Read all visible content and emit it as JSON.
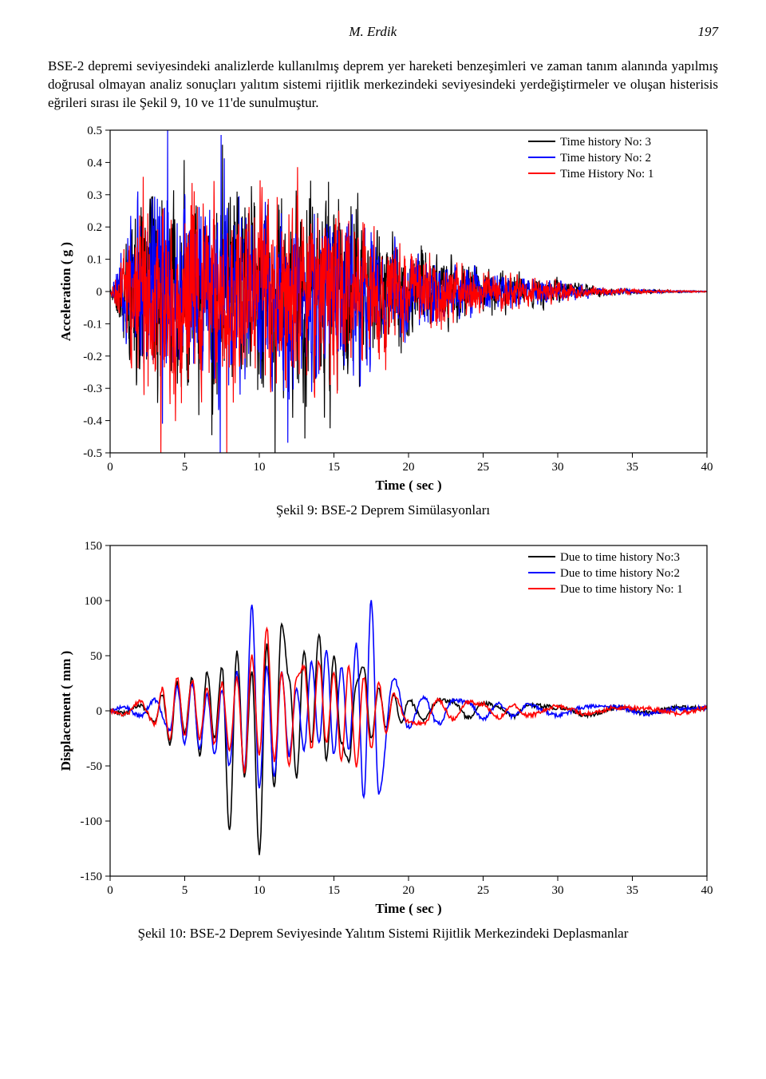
{
  "header": {
    "author": "M. Erdik",
    "page": "197"
  },
  "paragraph": "BSE-2 depremi seviyesindeki analizlerde kullanılmış deprem yer hareketi benzeşimleri ve zaman tanım alanında yapılmış doğrusal olmayan analiz sonuçları yalıtım sistemi rijitlik merkezindeki seviyesindeki yerdeğiştirmeler ve oluşan histerisis  eğrileri sırası ile Şekil 9, 10 ve 11'de sunulmuştur.",
  "chart1": {
    "type": "line",
    "caption": "Şekil 9: BSE-2 Deprem Simülasyonları",
    "xlabel": "Time ( sec )",
    "ylabel": "Acceleration ( g )",
    "xlim": [
      0,
      40
    ],
    "ylim": [
      -0.5,
      0.5
    ],
    "xtick_step": 5,
    "ytick_step": 0.1,
    "background_color": "#ffffff",
    "axis_color": "#000000",
    "grid": false,
    "title_fontsize": 17,
    "label_fontsize": 17,
    "tick_fontsize": 15,
    "line_width": 1.2,
    "legend": {
      "position": "top-right",
      "items": [
        {
          "label": "Time history No: 3",
          "color": "#000000"
        },
        {
          "label": "Time history No: 2",
          "color": "#0000ff"
        },
        {
          "label": "Time History No: 1",
          "color": "#ff0000"
        }
      ]
    },
    "series": [
      {
        "name": "th3",
        "color": "#000000",
        "noise_seed": 301,
        "peak": 0.45,
        "envelope": "seismic"
      },
      {
        "name": "th2",
        "color": "#0000ff",
        "noise_seed": 202,
        "peak": 0.4,
        "envelope": "seismic"
      },
      {
        "name": "th1",
        "color": "#ff0000",
        "noise_seed": 103,
        "peak": 0.42,
        "envelope": "seismic"
      }
    ],
    "duration_peak_window": [
      2,
      14
    ],
    "decay_after": 15
  },
  "chart2": {
    "type": "line",
    "caption": "Şekil 10: BSE-2 Deprem Seviyesinde Yalıtım Sistemi Rijitlik Merkezindeki Deplasmanlar",
    "xlabel": "Time ( sec )",
    "ylabel": "Displacement ( mm )",
    "xlim": [
      0,
      40
    ],
    "ylim": [
      -150,
      150
    ],
    "xtick_step": 5,
    "ytick_step": 50,
    "background_color": "#ffffff",
    "axis_color": "#000000",
    "grid": false,
    "title_fontsize": 17,
    "label_fontsize": 17,
    "tick_fontsize": 15,
    "line_width": 1.6,
    "legend": {
      "position": "top-right",
      "items": [
        {
          "label": "Due to time history No:3",
          "color": "#000000"
        },
        {
          "label": "Due to time history No:2",
          "color": "#0000ff"
        },
        {
          "label": "Due to time history No: 1",
          "color": "#ff0000"
        }
      ]
    },
    "series_data": {
      "th3": {
        "color": "#000000",
        "t": [
          0,
          1,
          2,
          3,
          3.5,
          4,
          4.5,
          5,
          5.5,
          6,
          6.5,
          7,
          7.5,
          8,
          8.5,
          9,
          9.5,
          10,
          10.5,
          11,
          11.5,
          12,
          12.5,
          13,
          13.5,
          14,
          14.5,
          15,
          15.5,
          16,
          16.5,
          17,
          17.5,
          18,
          18.5,
          19,
          19.5,
          20,
          21,
          22,
          23,
          24,
          25,
          26,
          27,
          28,
          30,
          32,
          34,
          36,
          38,
          40
        ],
        "y": [
          0,
          -2,
          5,
          -10,
          15,
          -30,
          25,
          -20,
          30,
          -40,
          35,
          -25,
          40,
          -110,
          55,
          -60,
          35,
          -130,
          60,
          -70,
          80,
          30,
          -60,
          55,
          -30,
          70,
          -45,
          50,
          -30,
          -45,
          25,
          40,
          -25,
          20,
          -15,
          15,
          -12,
          10,
          -8,
          10,
          8,
          -6,
          7,
          4,
          -5,
          5,
          3,
          -4,
          3,
          -2,
          3,
          2
        ]
      },
      "th2": {
        "color": "#0000ff",
        "t": [
          0,
          1,
          2,
          3,
          4,
          4.5,
          5,
          5.5,
          6,
          6.5,
          7,
          7.5,
          8,
          8.5,
          9,
          9.5,
          10,
          10.5,
          11,
          11.5,
          12,
          12.5,
          13,
          13.5,
          14,
          14.5,
          15,
          15.5,
          16,
          16.5,
          17,
          17.5,
          18,
          19,
          20,
          21,
          22,
          23,
          24,
          25,
          26,
          27,
          28,
          30,
          32,
          34,
          36,
          38,
          40
        ],
        "y": [
          0,
          3,
          -5,
          10,
          -18,
          22,
          -30,
          25,
          -35,
          15,
          -40,
          20,
          -50,
          35,
          -55,
          95,
          -70,
          40,
          -60,
          35,
          -40,
          20,
          -35,
          45,
          -30,
          55,
          -40,
          40,
          -35,
          60,
          -80,
          100,
          -75,
          30,
          -15,
          12,
          -12,
          10,
          8,
          -8,
          6,
          -5,
          5,
          -4,
          4,
          3,
          -3,
          2,
          3
        ]
      },
      "th1": {
        "color": "#ff0000",
        "t": [
          0,
          1,
          2,
          3,
          3.5,
          4,
          4.5,
          5,
          5.5,
          6,
          6.5,
          7,
          7.5,
          8,
          8.5,
          9,
          9.5,
          10,
          10.5,
          11,
          11.5,
          12,
          12.5,
          13,
          13.5,
          14,
          14.5,
          15,
          15.5,
          16,
          16.5,
          17,
          17.5,
          18,
          18.5,
          19,
          20,
          21,
          22,
          23,
          24,
          25,
          26,
          27,
          28,
          30,
          32,
          34,
          36,
          38,
          40
        ],
        "y": [
          0,
          -3,
          8,
          -12,
          20,
          -28,
          30,
          -22,
          28,
          -25,
          20,
          -30,
          25,
          -35,
          30,
          -55,
          50,
          -40,
          75,
          -45,
          35,
          -50,
          30,
          40,
          -35,
          45,
          -30,
          35,
          -45,
          40,
          -50,
          30,
          -35,
          25,
          -20,
          15,
          -10,
          -12,
          10,
          -8,
          8,
          6,
          -6,
          5,
          -4,
          4,
          -3,
          3,
          2,
          -2,
          2
        ]
      }
    }
  }
}
